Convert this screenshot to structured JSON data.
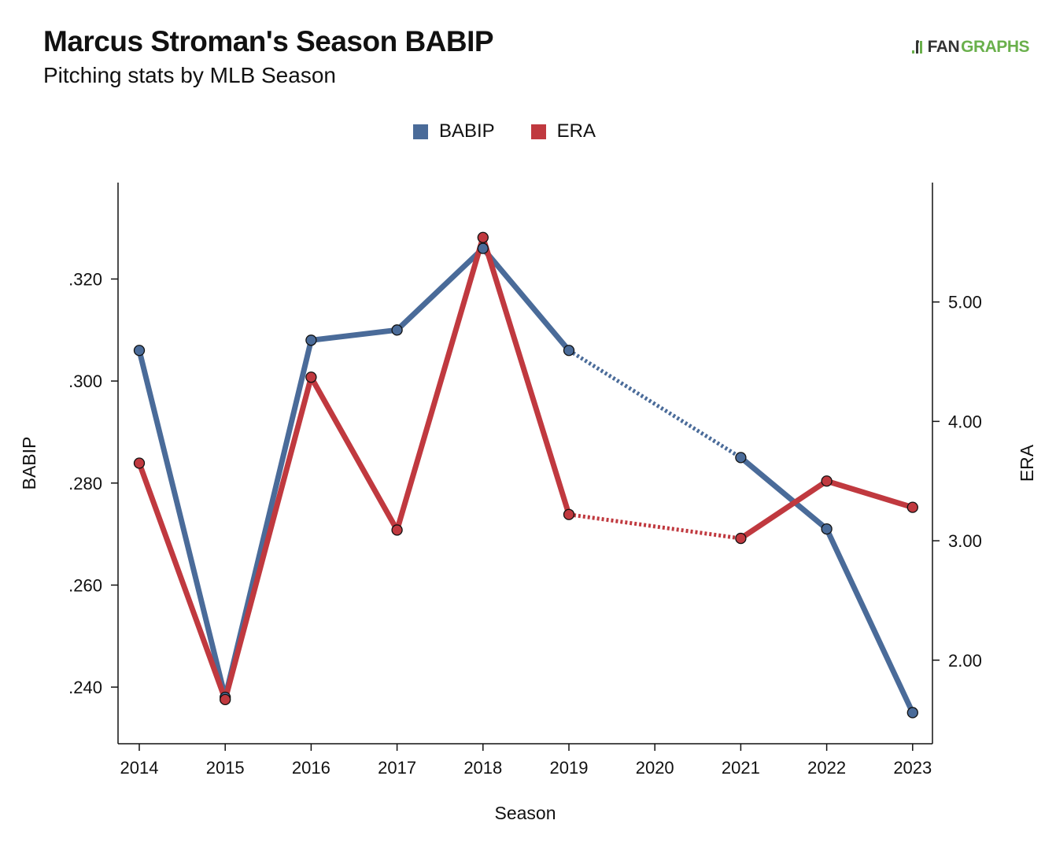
{
  "header": {
    "title": "Marcus Stroman's Season BABIP",
    "subtitle": "Pitching stats by MLB Season",
    "logo_fan": "FAN",
    "logo_graphs": "GRAPHS"
  },
  "chart_data": {
    "type": "line",
    "x": [
      2014,
      2015,
      2016,
      2017,
      2018,
      2019,
      2020,
      2021,
      2022,
      2023
    ],
    "xticks": [
      "2014",
      "2015",
      "2016",
      "2017",
      "2018",
      "2019",
      "2020",
      "2021",
      "2022",
      "2023"
    ],
    "xlabel": "Season",
    "ylabel": "BABIP",
    "y2label": "ERA",
    "ylim": [
      0.2289,
      0.3389
    ],
    "y2lim": [
      1.3,
      6.0
    ],
    "yticks": [
      0.24,
      0.26,
      0.28,
      0.3,
      0.32
    ],
    "ytick_labels": [
      ".240",
      ".260",
      ".280",
      ".300",
      ".320"
    ],
    "y2ticks": [
      2.0,
      3.0,
      4.0,
      5.0
    ],
    "y2tick_labels": [
      "2.00",
      "3.00",
      "4.00",
      "5.00"
    ],
    "grid": false,
    "legend_position": "top-center",
    "series": [
      {
        "name": "BABIP",
        "axis": "left",
        "color": "#4a6b99",
        "points": [
          {
            "x": 2014,
            "y": 0.306
          },
          {
            "x": 2015,
            "y": 0.238
          },
          {
            "x": 2016,
            "y": 0.308
          },
          {
            "x": 2017,
            "y": 0.31
          },
          {
            "x": 2018,
            "y": 0.326
          },
          {
            "x": 2019,
            "y": 0.306
          },
          {
            "x": 2021,
            "y": 0.285
          },
          {
            "x": 2022,
            "y": 0.271
          },
          {
            "x": 2023,
            "y": 0.235
          }
        ]
      },
      {
        "name": "ERA",
        "axis": "right",
        "color": "#c0393f",
        "points": [
          {
            "x": 2014,
            "y": 3.65
          },
          {
            "x": 2015,
            "y": 1.67
          },
          {
            "x": 2016,
            "y": 4.37
          },
          {
            "x": 2017,
            "y": 3.09
          },
          {
            "x": 2018,
            "y": 5.54
          },
          {
            "x": 2019,
            "y": 3.22
          },
          {
            "x": 2021,
            "y": 3.02
          },
          {
            "x": 2022,
            "y": 3.5
          },
          {
            "x": 2023,
            "y": 3.28
          }
        ]
      }
    ]
  }
}
